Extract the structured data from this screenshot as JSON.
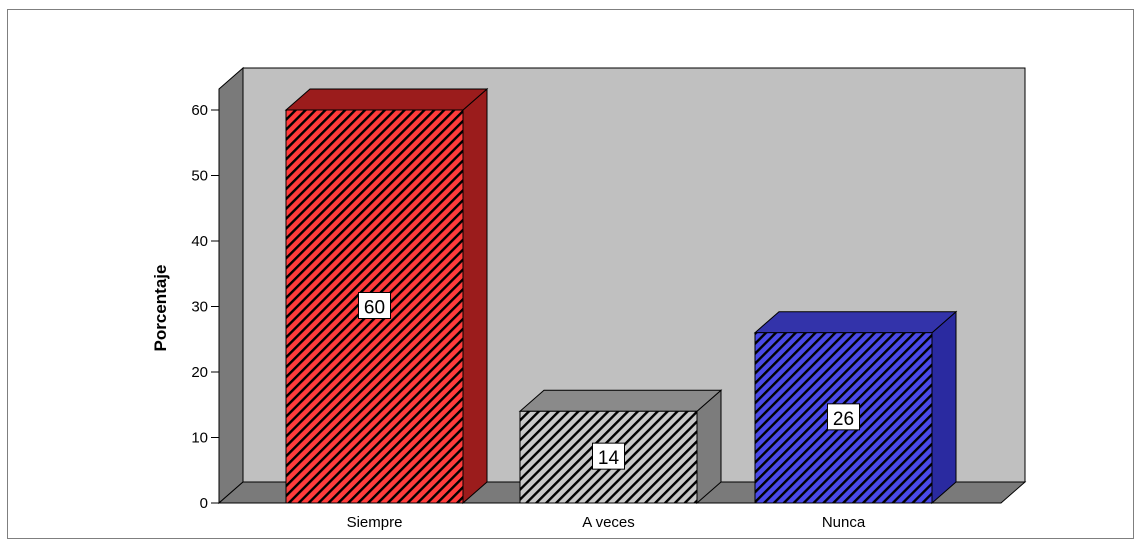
{
  "chart_data": {
    "type": "bar",
    "categories": [
      "Siempre",
      "A veces",
      "Nunca"
    ],
    "values": [
      60,
      14,
      26
    ],
    "data_labels": [
      "60",
      "14",
      "26"
    ],
    "title": "",
    "xlabel": "",
    "ylabel": "Porcentaje",
    "ylim": [
      0,
      60
    ],
    "yticks": [
      0,
      10,
      20,
      30,
      40,
      50,
      60
    ],
    "ytick_labels": [
      "0",
      "10",
      "20",
      "30",
      "40",
      "50",
      "60"
    ],
    "grid": false,
    "style": "3d-hatched",
    "colors": {
      "bars": [
        "#ff3b3b",
        "#c8c8c8",
        "#4a4ae8"
      ],
      "bar_sides": [
        "#9b1c1c",
        "#7c7c7c",
        "#2a2aa0"
      ],
      "bar_tops": [
        "#9b1c1c",
        "#8a8a8a",
        "#3333aa"
      ],
      "back_wall": "#c0c0c0",
      "side_wall": "#7a7a7a",
      "floor": "#7a7a7a"
    }
  }
}
